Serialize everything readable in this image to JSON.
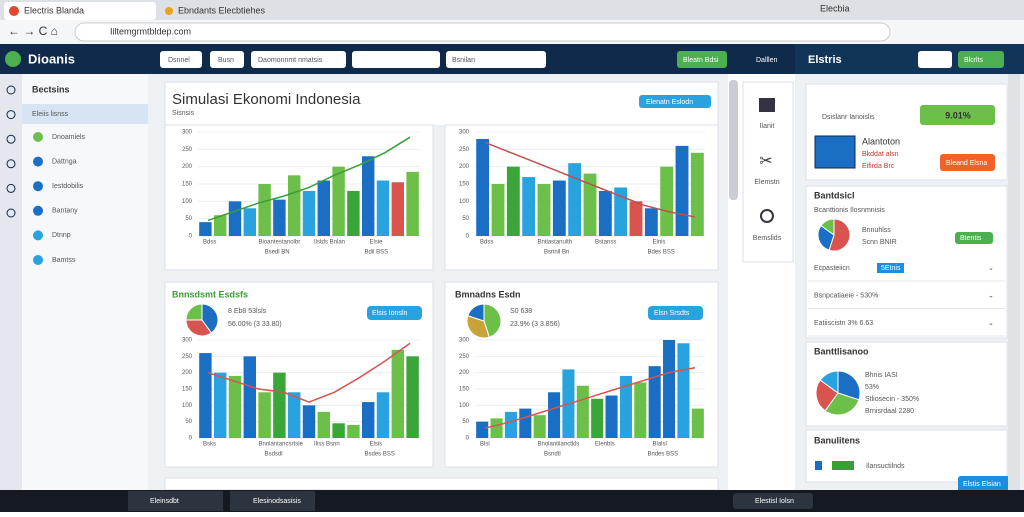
{
  "browser": {
    "tab1": "Electris Blanda",
    "tab2": "Ebndants Elecbtiehes",
    "tab3": "Elecbia",
    "url": "Iiltemgrmtbldep.com"
  },
  "header": {
    "logo": "Dioanis",
    "btn1": "Dsnnel",
    "btn2": "Busn",
    "select1": "Daomonnmt nmatsis",
    "select2": "Bsnilan",
    "action": "Bleatn Bdsi",
    "icon_label": "Dalllen"
  },
  "sidebar": {
    "heading": "Bectsins",
    "selected": "Eleiis lisnss",
    "items": [
      "Dnoamiels",
      "Dattnga",
      "Iestdobilis",
      "Bantany",
      "Dtnnp",
      "Bamtss"
    ]
  },
  "main": {
    "title": "Simulasi Ekonomi Indonesia",
    "subtitle": "Sisnsis",
    "title_button": "Elenatn Eslodn",
    "card3": {
      "title": "Bnnsdsmt Esdsfs",
      "line1": "8 Eb8 53lsls",
      "line2": "56.00% (3 33.80)",
      "button": "Elsis Ionsln"
    },
    "card4": {
      "title": "Bmnadns Esdn",
      "line1": "S0 638",
      "line2": "23.9% (3 3.856)",
      "button": "Elsn Srsdts"
    }
  },
  "tools": [
    "Ilanit",
    "Elemstn",
    "Bemslids"
  ],
  "charts": [
    {
      "type": "bar",
      "ylim": [
        0,
        300
      ],
      "yticks": [
        0,
        50,
        100,
        150,
        200,
        250,
        300
      ],
      "values": [
        40,
        60,
        100,
        80,
        150,
        105,
        175,
        130,
        160,
        200,
        130,
        230,
        160,
        155,
        185
      ],
      "colors": [
        "#1a6fc4",
        "#6cc04a",
        "#1a6fc4",
        "#29a3e0",
        "#6cc04a",
        "#1a6fc4",
        "#6cc04a",
        "#29a3e0",
        "#1a6fc4",
        "#6cc04a",
        "#3aa63a",
        "#1a6fc4",
        "#29a3e0",
        "#d9534f",
        "#6cc04a"
      ],
      "line": [
        45,
        70,
        95,
        115,
        140,
        175,
        205,
        240,
        285
      ],
      "line_color": "#3a9d3a",
      "categories": [
        "Bdss",
        "Bioantestanolbr",
        "Ilstds Bnlan",
        "Elsie"
      ],
      "sublabels": [
        "Bsedl BN",
        "Bdil BSS"
      ]
    },
    {
      "type": "bar",
      "ylim": [
        0,
        300
      ],
      "yticks": [
        0,
        50,
        100,
        150,
        200,
        250,
        300
      ],
      "values": [
        280,
        150,
        200,
        170,
        150,
        160,
        210,
        180,
        130,
        140,
        100,
        80,
        200,
        260,
        240
      ],
      "colors": [
        "#1a6fc4",
        "#6cc04a",
        "#3aa63a",
        "#29a3e0",
        "#6cc04a",
        "#1a6fc4",
        "#29a3e0",
        "#6cc04a",
        "#1a6fc4",
        "#29a3e0",
        "#d9534f",
        "#1a6fc4",
        "#6cc04a",
        "#1a6fc4",
        "#6cc04a"
      ],
      "line": [
        270,
        240,
        210,
        180,
        150,
        120,
        90,
        70,
        55
      ],
      "line_color": "#c0504d",
      "categories": [
        "Bdss",
        "Bntiastanulth",
        "Bstanss",
        "Elnis"
      ],
      "sublabels": [
        "Bsnnll Bn",
        "Bdes BSS"
      ]
    },
    {
      "type": "bar",
      "ylim": [
        0,
        300
      ],
      "yticks": [
        0,
        50,
        100,
        150,
        200,
        250,
        300
      ],
      "values": [
        260,
        200,
        190,
        250,
        140,
        200,
        140,
        100,
        80,
        45,
        40,
        110,
        140,
        270,
        250
      ],
      "colors": [
        "#1a6fc4",
        "#29a3e0",
        "#6cc04a",
        "#1a6fc4",
        "#6cc04a",
        "#3aa63a",
        "#29a3e0",
        "#1a6fc4",
        "#6cc04a",
        "#3aa63a",
        "#6cc04a",
        "#1a6fc4",
        "#29a3e0",
        "#6cc04a",
        "#3aa63a"
      ],
      "line": [
        200,
        175,
        150,
        140,
        110,
        140,
        185,
        235,
        290
      ],
      "line_color": "#d9534f",
      "categories": [
        "Bsks",
        "Bnnlantancsrtsle",
        "Iliss Bsnn",
        "Elsis"
      ],
      "sublabels": [
        "Bsdsdl",
        "Bsdes BSS"
      ]
    },
    {
      "type": "bar",
      "ylim": [
        0,
        300
      ],
      "yticks": [
        0,
        50,
        100,
        150,
        200,
        250,
        300
      ],
      "values": [
        50,
        60,
        80,
        90,
        70,
        140,
        210,
        160,
        120,
        130,
        190,
        170,
        220,
        300,
        290,
        90
      ],
      "colors": [
        "#1a6fc4",
        "#6cc04a",
        "#29a3e0",
        "#1a6fc4",
        "#6cc04a",
        "#1a6fc4",
        "#29a3e0",
        "#6cc04a",
        "#3aa63a",
        "#1a6fc4",
        "#29a3e0",
        "#6cc04a",
        "#1a6fc4",
        "#1a6fc4",
        "#29a3e0",
        "#6cc04a"
      ],
      "line": [
        30,
        50,
        75,
        100,
        125,
        150,
        175,
        200,
        215
      ],
      "line_color": "#d9534f",
      "categories": [
        "Blsl",
        "Bnolantilanctkls",
        "Elenbls",
        "Blalsl"
      ],
      "sublabels": [
        "Bsndtl",
        "Bndes BSS"
      ]
    }
  ],
  "pies": [
    {
      "type": "pie",
      "values": [
        40,
        35,
        25
      ],
      "colors": [
        "#1a6fc4",
        "#d9534f",
        "#6cc04a"
      ]
    },
    {
      "type": "pie",
      "values": [
        45,
        35,
        20
      ],
      "colors": [
        "#6cc04a",
        "#c9a23a",
        "#1a6fc4"
      ]
    },
    {
      "type": "pie",
      "values": [
        55,
        30,
        15
      ],
      "colors": [
        "#d9534f",
        "#1a6fc4",
        "#6cc04a"
      ]
    },
    {
      "type": "pie",
      "values": [
        30,
        30,
        25,
        15
      ],
      "colors": [
        "#1a6fc4",
        "#6cc04a",
        "#d9534f",
        "#29a3e0"
      ]
    }
  ],
  "right": {
    "title": "Elstris",
    "button": "Blcrlts",
    "card1": {
      "label": "Dsislanr Ianoislis",
      "value": "9.01%",
      "name": "Alantoton",
      "line1": "Bkddat alsn",
      "line2": "Eifirda Brc",
      "button": "Bleand Elsna"
    },
    "card2": {
      "title": "Bantdsicl",
      "sub": "Bcanttionis Ilosnmnisis",
      "line1": "Bnnuhlss",
      "line2": "Scnn BNIR",
      "pill": "Btentis",
      "rows": [
        "Ecpasteiicn",
        "Bsnpcatiaeie - 530%",
        "Eatiiscistn 3% 6.63"
      ],
      "row_pill": "5Etnis"
    },
    "card3": {
      "title": "Banttlisanoo",
      "lines": [
        "Bhnis IASI",
        "53%",
        "Stliosecin - 350%",
        "Brnisrdaal 2280"
      ]
    },
    "card4": {
      "title": "Banulitens",
      "line": "Ilansuctilnds"
    },
    "float_button": "Elstis Elsian"
  },
  "taskbar": {
    "app1": "Eleinsdbt",
    "app2": "Elesinodsasisis",
    "search": "Elestisl Iolsn"
  }
}
